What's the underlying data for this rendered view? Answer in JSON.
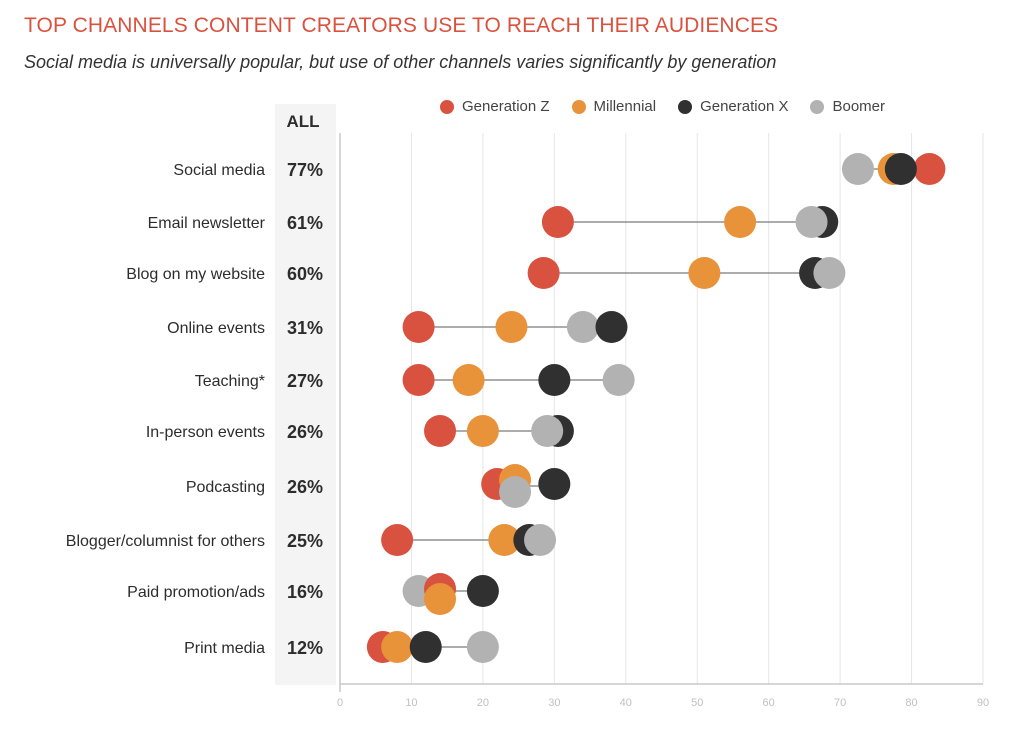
{
  "header": {
    "title": "TOP CHANNELS CONTENT CREATORS USE TO REACH THEIR AUDIENCES",
    "subtitle": "Social media is universally popular, but use of other channels varies significantly by generation"
  },
  "all_column_header": "ALL",
  "chart_data": {
    "type": "dot-plot",
    "title": "TOP CHANNELS CONTENT CREATORS USE TO REACH THEIR AUDIENCES",
    "subtitle": "Social media is universally popular, but use of other channels varies significantly by generation",
    "xlabel": "",
    "ylabel": "",
    "xlim": [
      0,
      90
    ],
    "xticks": [
      0,
      10,
      20,
      30,
      40,
      50,
      60,
      70,
      80,
      90
    ],
    "grid": true,
    "legend_position": "top",
    "categories": [
      "Social media",
      "Email newsletter",
      "Blog on my website",
      "Online events",
      "Teaching*",
      "In-person events",
      "Podcasting",
      "Blogger/columnist for others",
      "Paid promotion/ads",
      "Print media"
    ],
    "all_values": [
      "77%",
      "61%",
      "60%",
      "31%",
      "27%",
      "26%",
      "26%",
      "25%",
      "16%",
      "12%"
    ],
    "series": [
      {
        "name": "Generation Z",
        "color": "#d9523f",
        "values": [
          82.5,
          30.5,
          28.5,
          11,
          11,
          14,
          22,
          8,
          14,
          6
        ]
      },
      {
        "name": "Millennial",
        "color": "#e8923a",
        "values": [
          77.5,
          56,
          51,
          24,
          18,
          20,
          24.5,
          23,
          14,
          8
        ]
      },
      {
        "name": "Generation X",
        "color": "#2f302f",
        "values": [
          78.5,
          67.5,
          66.5,
          38,
          30,
          30.5,
          30,
          26.5,
          20,
          12
        ]
      },
      {
        "name": "Boomer",
        "color": "#b1b2b1",
        "values": [
          72.5,
          66,
          68.5,
          34,
          39,
          29,
          24.5,
          28,
          11,
          20
        ]
      }
    ]
  }
}
